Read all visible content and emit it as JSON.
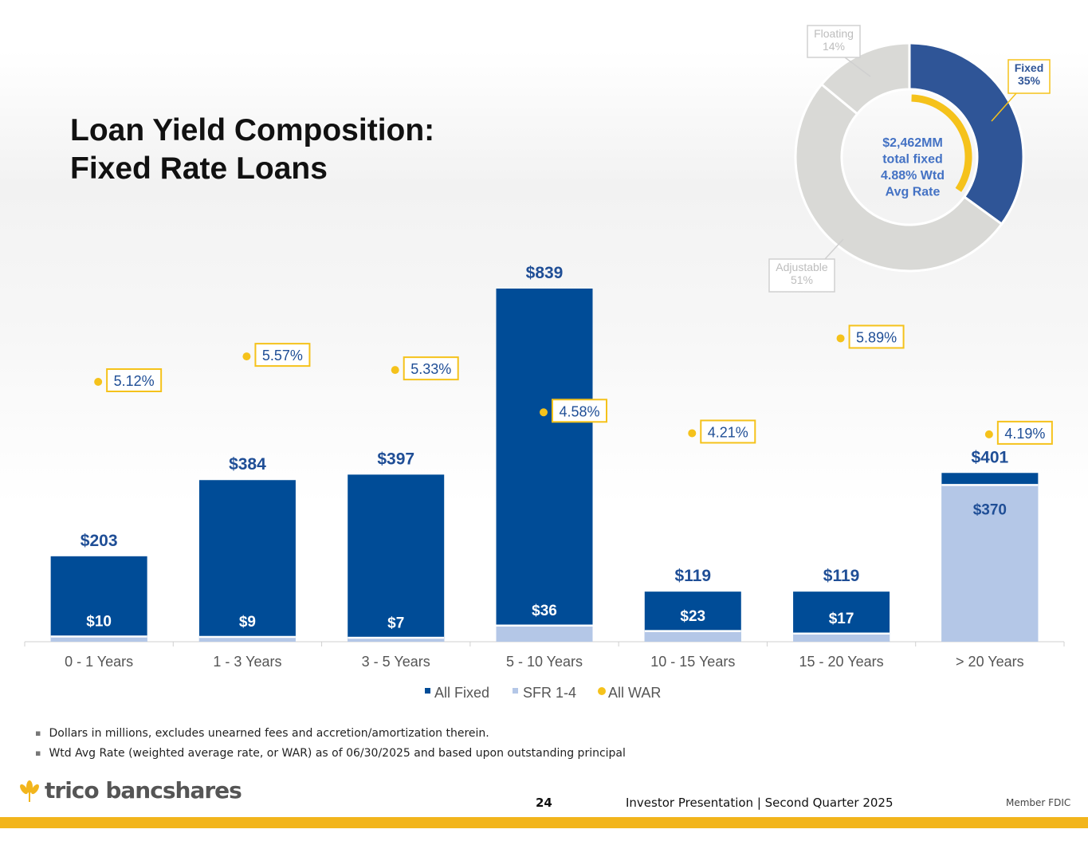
{
  "title": {
    "line1": "Loan Yield Composition:",
    "line2": "Fixed Rate Loans"
  },
  "colors": {
    "all_fixed": "#004c97",
    "sfr": "#b4c7e7",
    "war": "#f5c21b",
    "label_blue": "#1f4e96",
    "axis_text": "#555555"
  },
  "chart_data": [
    {
      "type": "bar",
      "stacked": false,
      "categories": [
        "0 - 1 Years",
        "1 - 3 Years",
        "3 - 5 Years",
        "5 - 10 Years",
        "10 - 15 Years",
        "15 - 20 Years",
        "> 20 Years"
      ],
      "series": [
        {
          "name": "All Fixed",
          "values": [
            203,
            384,
            397,
            839,
            119,
            119,
            401
          ],
          "labels": [
            "$203",
            "$384",
            "$397",
            "$839",
            "$119",
            "$119",
            "$401"
          ]
        },
        {
          "name": "SFR 1-4",
          "values": [
            10,
            9,
            7,
            36,
            23,
            17,
            370
          ],
          "labels": [
            "$10",
            "$9",
            "$7",
            "$36",
            "$23",
            "$17",
            "$370"
          ]
        },
        {
          "name": "All WAR",
          "values": [
            5.12,
            5.57,
            5.33,
            4.58,
            4.21,
            5.89,
            4.19
          ],
          "labels": [
            "5.12%",
            "5.57%",
            "5.33%",
            "4.58%",
            "4.21%",
            "5.89%",
            "4.19%"
          ],
          "axis": "secondary"
        }
      ],
      "legend": [
        "All Fixed",
        "SFR 1-4",
        "All WAR"
      ],
      "legend_position": "bottom",
      "ylim": [
        0,
        839
      ],
      "y2lim": [
        3.2,
        6.8
      ],
      "units": "$ millions"
    },
    {
      "type": "pie",
      "donut": true,
      "slices": [
        {
          "name": "Fixed",
          "value": 35,
          "label": "35%"
        },
        {
          "name": "Adjustable",
          "value": 51,
          "label": "51%"
        },
        {
          "name": "Floating",
          "value": 14,
          "label": "14%"
        }
      ],
      "center_text": [
        "$2,462MM",
        "total fixed",
        "4.88% Wtd",
        "Avg Rate"
      ]
    }
  ],
  "notes": [
    "Dollars in millions, excludes unearned fees and accretion/amortization therein.",
    "Wtd Avg Rate (weighted average rate, or WAR) as of 06/30/2025 and based upon outstanding principal"
  ],
  "footer": {
    "logo_text": "trico bancshares",
    "page_number": "24",
    "caption": "Investor Presentation  |  Second Quarter 2025",
    "member": "Member FDIC"
  }
}
